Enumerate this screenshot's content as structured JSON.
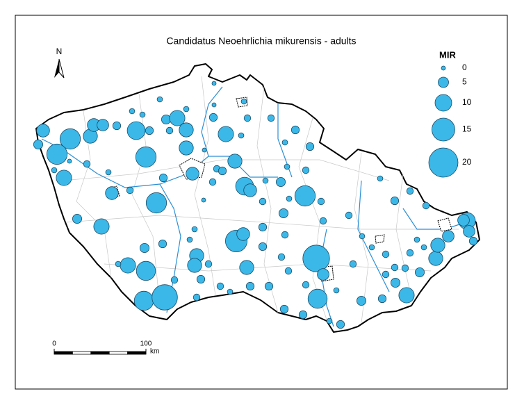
{
  "title": "Candidatus Neoehrlichia mikurensis - adults",
  "north": "N",
  "legend": {
    "title": "MIR",
    "values": [
      0,
      5,
      10,
      15,
      20
    ]
  },
  "scale_bar": {
    "ticks": [
      0,
      100
    ],
    "unit": "km"
  },
  "sites": {
    "color": "#3bb8e8",
    "values": [
      7,
      13,
      13,
      8,
      7,
      6,
      3,
      11,
      13,
      4,
      9,
      8,
      2,
      3,
      8,
      7,
      3,
      13,
      9,
      9,
      4,
      7,
      2,
      1,
      1,
      9,
      3,
      8,
      11,
      7,
      2,
      1,
      2,
      2,
      3,
      1,
      3,
      1,
      4,
      4,
      13,
      2,
      2,
      2,
      1,
      2,
      0,
      14,
      7,
      3,
      3,
      2,
      18,
      6,
      12,
      3,
      1,
      3,
      2,
      2,
      4,
      3,
      2,
      2,
      9,
      4,
      2,
      4,
      8,
      8,
      6,
      10,
      6,
      3,
      6,
      2,
      2,
      3,
      1,
      1,
      1,
      2,
      2,
      1,
      1,
      9,
      12,
      12,
      17,
      2,
      4,
      3,
      8,
      8,
      3,
      2,
      2,
      1,
      8,
      3,
      3,
      3,
      2,
      2,
      2,
      2,
      1,
      1,
      2,
      1,
      1,
      1,
      2,
      0,
      1,
      4,
      0,
      1,
      0,
      1,
      1,
      0,
      3,
      1
    ]
  }
}
